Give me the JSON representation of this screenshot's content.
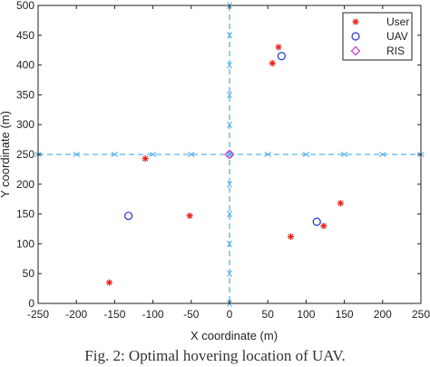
{
  "caption": "Fig. 2: Optimal hovering location of UAV.",
  "colors": {
    "user": "#e8231f",
    "uav": "#2233cc",
    "ris": "#cc33cc",
    "grid": "#5ab4e6"
  },
  "chart_data": {
    "type": "scatter",
    "xlabel": "X coordinate (m)",
    "ylabel": "Y coordinate (m)",
    "xlim": [
      -250,
      250
    ],
    "ylim": [
      0,
      500
    ],
    "xticks": [
      -250,
      -200,
      -150,
      -100,
      -50,
      0,
      50,
      100,
      150,
      200,
      250
    ],
    "yticks": [
      0,
      50,
      100,
      150,
      200,
      250,
      300,
      350,
      400,
      450,
      500
    ],
    "legend_position": "top-right",
    "grid_lines": {
      "x": [
        -250,
        -200,
        -150,
        -100,
        -50,
        0,
        50,
        100,
        150,
        200,
        250
      ],
      "y": [
        0,
        50,
        100,
        150,
        200,
        250,
        300,
        350,
        400,
        450,
        500
      ],
      "horizontal_at_y": 250,
      "vertical_at_x": 0
    },
    "series": [
      {
        "name": "User",
        "marker": "asterisk",
        "x": [
          -157,
          -110,
          -52,
          56,
          64,
          80,
          123,
          145
        ],
        "y": [
          35,
          243,
          147,
          403,
          430,
          112,
          130,
          168
        ]
      },
      {
        "name": "UAV",
        "marker": "circle",
        "x": [
          -132,
          68,
          114
        ],
        "y": [
          147,
          415,
          137
        ]
      },
      {
        "name": "RIS",
        "marker": "diamond",
        "x": [
          0
        ],
        "y": [
          250
        ]
      }
    ]
  }
}
